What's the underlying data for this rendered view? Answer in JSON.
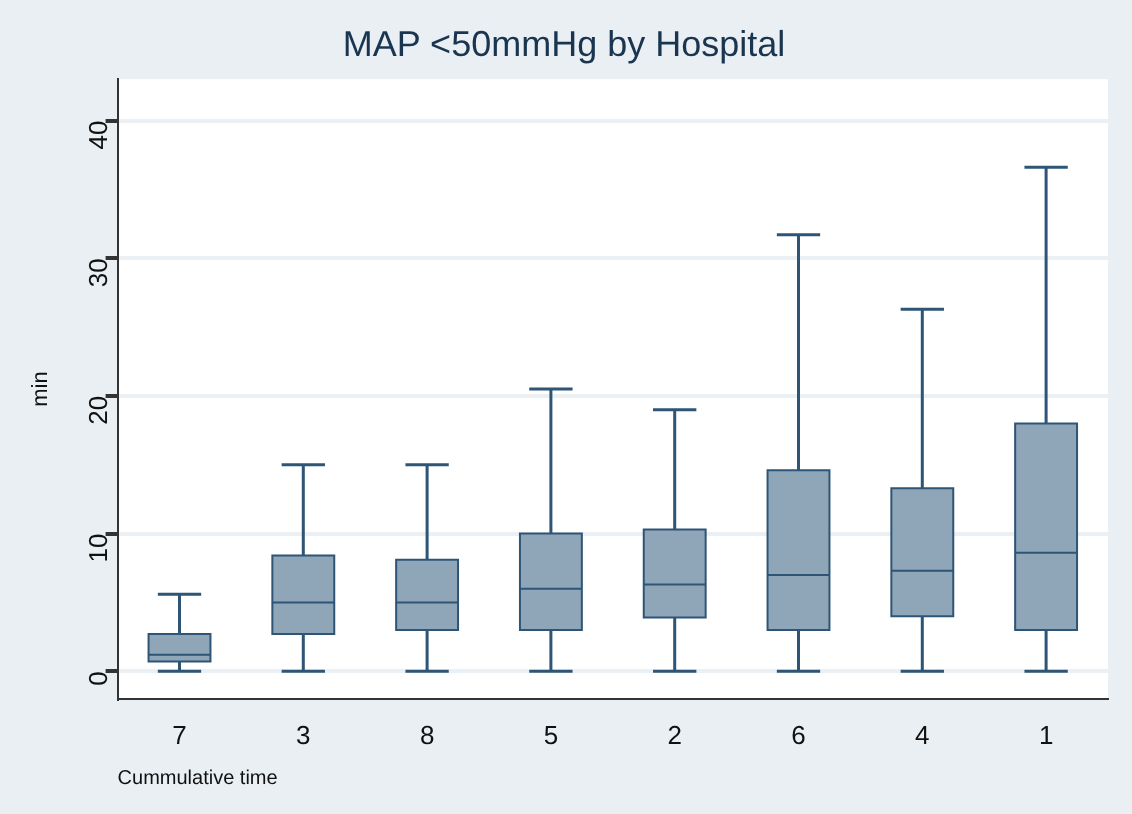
{
  "chart_data": {
    "type": "box",
    "title": "MAP <50mmHg by Hospital",
    "ylabel": "min",
    "xlabel": "Cummulative time",
    "categories": [
      "7",
      "3",
      "8",
      "5",
      "2",
      "6",
      "4",
      "1"
    ],
    "series": [
      {
        "color": "#8fa5b8",
        "boxes": [
          {
            "low": 0,
            "q1": 0.7,
            "median": 1.2,
            "q3": 2.7,
            "high": 5.6
          },
          {
            "low": 0,
            "q1": 2.7,
            "median": 5.0,
            "q3": 8.4,
            "high": 15
          },
          {
            "low": 0,
            "q1": 3.0,
            "median": 5.0,
            "q3": 8.1,
            "high": 15
          },
          {
            "low": 0,
            "q1": 3.0,
            "median": 6.0,
            "q3": 10,
            "high": 20.5
          },
          {
            "low": 0,
            "q1": 3.9,
            "median": 6.3,
            "q3": 10.3,
            "high": 19
          },
          {
            "low": 0,
            "q1": 3.0,
            "median": 7.0,
            "q3": 14.6,
            "high": 31.7
          },
          {
            "low": 0,
            "q1": 4.0,
            "median": 7.3,
            "q3": 13.3,
            "high": 26.3
          },
          {
            "low": 0,
            "q1": 3.0,
            "median": 8.6,
            "q3": 18.0,
            "high": 36.6
          }
        ]
      }
    ],
    "ylim": [
      -2,
      43
    ],
    "yticks": [
      0,
      10,
      20,
      30,
      40
    ],
    "grid": "y",
    "legend": false
  }
}
